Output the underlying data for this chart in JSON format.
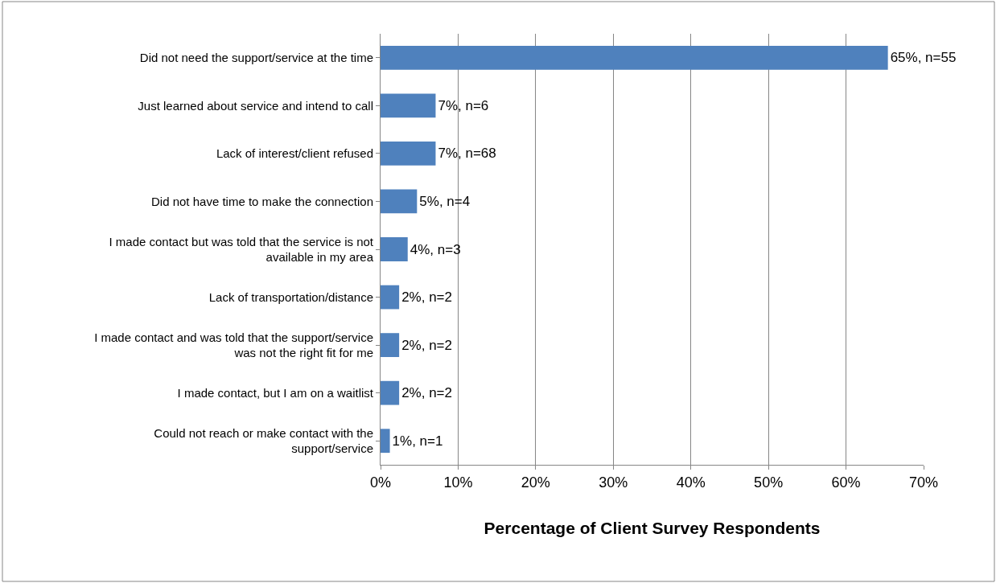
{
  "chart_data": {
    "type": "bar",
    "orientation": "horizontal",
    "xlabel": "Percentage of Client Survey Respondents",
    "categories": [
      "Did not need the support/service at the time",
      "Just learned about service and intend to call",
      "Lack of interest/client refused",
      "Did not have time to make the connection",
      "I made contact but was told that the service is not available in my area",
      "Lack of transportation/distance",
      "I made contact and was told that the support/service was not the right fit for me",
      "I made contact, but I am on a waitlist",
      "Could not reach or make contact with the support/service"
    ],
    "values": [
      65.4,
      7.1,
      7.1,
      4.7,
      3.5,
      2.4,
      2.4,
      2.4,
      1.2
    ],
    "value_labels": [
      "65%, n=55",
      "7%, n=6",
      "7%, n=68",
      "5%, n=4",
      "4%, n=3",
      "2%, n=2",
      "2%, n=2",
      "2%, n=2",
      "1%, n=1"
    ],
    "color": "#4f81bd",
    "xlim": [
      0,
      70
    ],
    "xticks": [
      {
        "value": 0,
        "label": "0%"
      },
      {
        "value": 10,
        "label": "10%"
      },
      {
        "value": 20,
        "label": "20%"
      },
      {
        "value": 30,
        "label": "30%"
      },
      {
        "value": 40,
        "label": "40%"
      },
      {
        "value": 50,
        "label": "50%"
      },
      {
        "value": 60,
        "label": "60%"
      },
      {
        "value": 70,
        "label": "70%"
      }
    ],
    "grid": "x",
    "legend": false
  }
}
